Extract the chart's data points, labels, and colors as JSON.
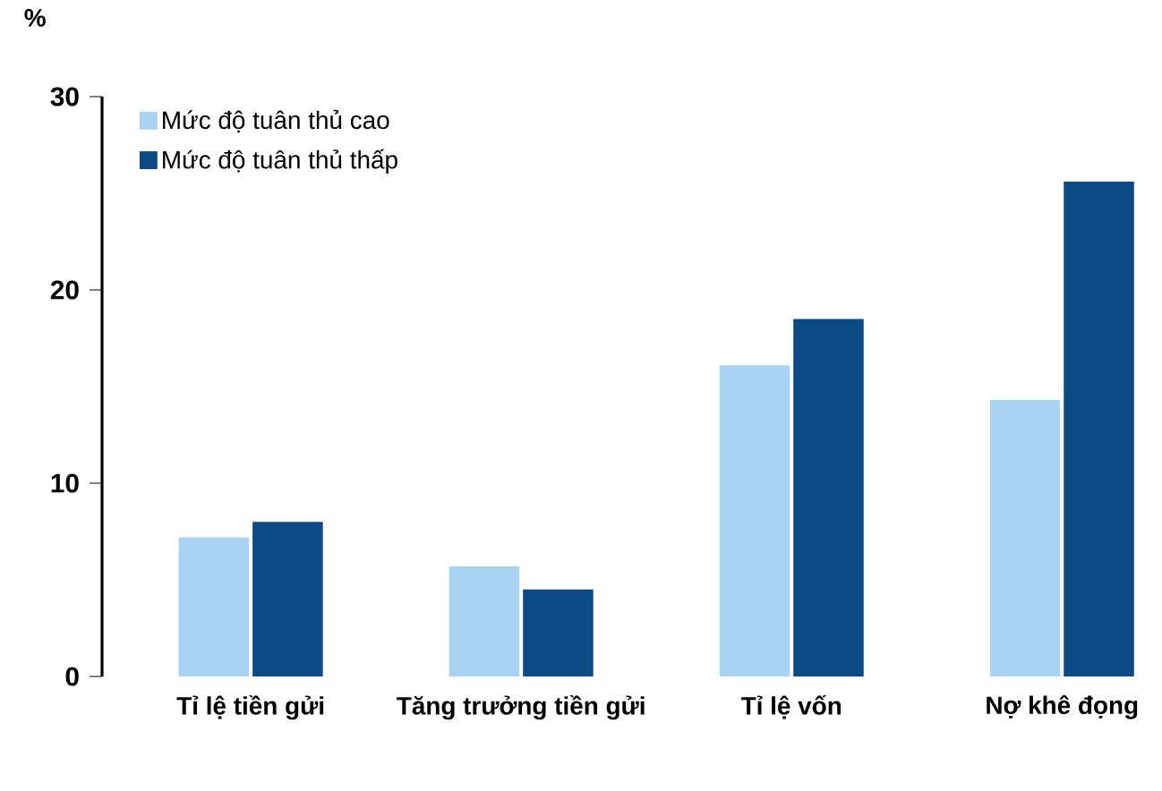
{
  "chart_data": {
    "type": "bar",
    "ylabel": "%",
    "categories": [
      "Tỉ lệ tiền gửi",
      "Tăng trưởng tiền gửi",
      "Tỉ lệ vốn",
      "Nợ khê đọng"
    ],
    "series": [
      {
        "name": "Mức độ tuân thủ cao",
        "color": "#a9d3f2",
        "values": [
          7.2,
          5.7,
          16.1,
          14.3
        ]
      },
      {
        "name": "Mức độ tuân thủ thấp",
        "color": "#0b4a85",
        "values": [
          8.0,
          4.5,
          18.5,
          25.6
        ]
      }
    ],
    "ylim": [
      0,
      30
    ],
    "yticks": [
      0,
      10,
      20,
      30
    ],
    "grid": false,
    "legend": "top left"
  }
}
